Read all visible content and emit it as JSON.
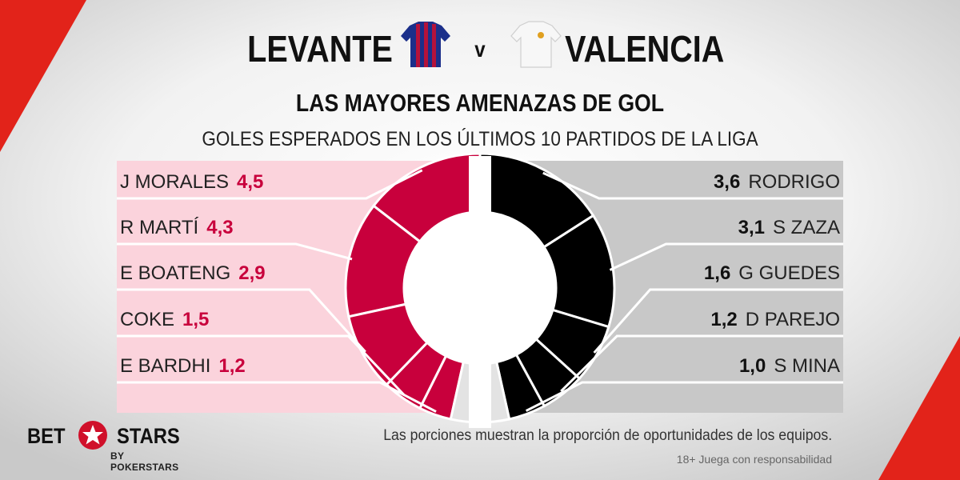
{
  "header": {
    "home_team": "LEVANTE",
    "away_team": "VALENCIA",
    "versus": "v"
  },
  "chart_data": {
    "type": "pie",
    "title": "LAS MAYORES AMENAZAS DE GOL",
    "subtitle": "GOLES ESPERADOS EN LOS ÚLTIMOS 10 PARTIDOS DE LA LIGA",
    "home": {
      "team": "LEVANTE",
      "color": "#c8003c",
      "players": [
        {
          "name": "J MORALES",
          "label": "4,5",
          "value": 4.5
        },
        {
          "name": "R MARTÍ",
          "label": "4,3",
          "value": 4.3
        },
        {
          "name": "E BOATENG",
          "label": "2,9",
          "value": 2.9
        },
        {
          "name": "COKE",
          "label": "1,5",
          "value": 1.5
        },
        {
          "name": "E BARDHI",
          "label": "1,2",
          "value": 1.2
        }
      ]
    },
    "away": {
      "team": "VALENCIA",
      "color": "#000000",
      "players": [
        {
          "name": "RODRIGO",
          "label": "3,6",
          "value": 3.6
        },
        {
          "name": "S ZAZA",
          "label": "3,1",
          "value": 3.1
        },
        {
          "name": "G GUEDES",
          "label": "1,6",
          "value": 1.6
        },
        {
          "name": "D PAREJO",
          "label": "1,2",
          "value": 1.2
        },
        {
          "name": "S MINA",
          "label": "1,0",
          "value": 1.0
        }
      ]
    }
  },
  "footer": {
    "note": "Las porciones muestran la proporción de oportunidades de los equipos.",
    "responsible": "18+ Juega con responsabilidad",
    "logo_bet": "BET",
    "logo_stars": "STARS",
    "logo_by": "BY POKERSTARS"
  },
  "colors": {
    "home_panel": "#fbd3dc",
    "away_panel": "#c8c8c8",
    "accent": "#e2231a"
  }
}
